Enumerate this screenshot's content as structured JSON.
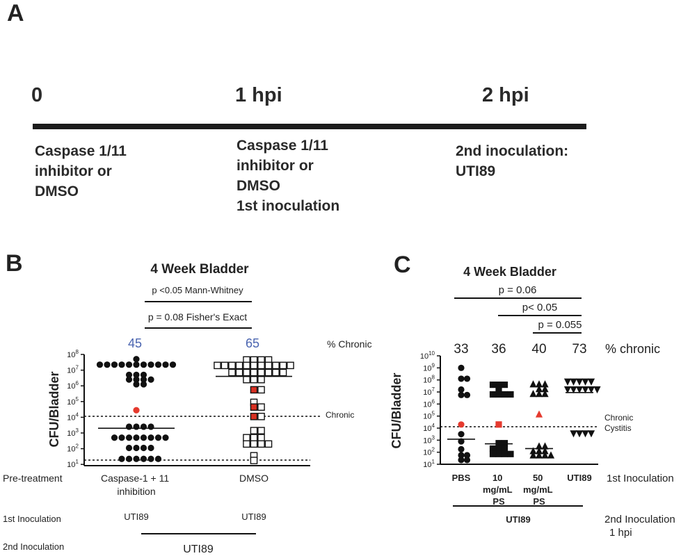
{
  "panelA": {
    "label": "A",
    "timepoints": [
      "0",
      "1 hpi",
      "2 hpi"
    ],
    "step_lines": [
      [
        "Caspase 1/11",
        "inhibitor or",
        "DMSO"
      ],
      [
        "Caspase 1/11",
        "inhibitor or",
        "DMSO",
        "1st inoculation"
      ],
      [
        "2nd inoculation:",
        "UTI89"
      ]
    ]
  },
  "panelB": {
    "label": "B",
    "title": "4 Week Bladder",
    "p_mw": "p <0.05 Mann-Whitney",
    "p_fisher": "p = 0.08 Fisher's Exact",
    "pct_values": [
      "45",
      "65"
    ],
    "pct_label": "% Chronic",
    "ylabel": "CFU/Bladder",
    "chronic_label": "Chronic",
    "row_labels": [
      "Pre-treatment",
      "1st Inoculation",
      "2nd Inoculation"
    ],
    "group_names": [
      [
        "Caspase-1 + 11",
        "inhibition"
      ],
      [
        "DMSO"
      ]
    ],
    "first_inoc": [
      "UTI89",
      "UTI89"
    ],
    "second_inoc": "UTI89",
    "tick_exponents": [
      "8",
      "7",
      "6",
      "5",
      "4",
      "3",
      "2",
      "1"
    ]
  },
  "panelC": {
    "label": "C",
    "title": "4 Week Bladder",
    "p_values": [
      "p = 0.06",
      "p< 0.05",
      "p = 0.055"
    ],
    "pct_values": [
      "33",
      "36",
      "40",
      "73"
    ],
    "pct_label": "% chronic",
    "ylabel": "CFU/Bladder",
    "chronic_label": [
      "Chronic",
      "Cystitis"
    ],
    "group_labels": [
      [
        "PBS"
      ],
      [
        "10",
        "mg/mL",
        "PS"
      ],
      [
        "50",
        "mg/mL",
        "PS"
      ],
      [
        "UTI89"
      ]
    ],
    "first_inoc_label": "1st Inoculation",
    "second_inoc_label": [
      "2nd Inoculation",
      "1 hpi"
    ],
    "second_inoc_value": "UTI89",
    "tick_exponents": [
      "10",
      "9",
      "8",
      "7",
      "6",
      "5",
      "4",
      "3",
      "2",
      "1"
    ]
  },
  "chart_data": [
    {
      "type": "scatter",
      "title": "4 Week Bladder",
      "ylabel": "CFU/Bladder",
      "yscale": "log",
      "ylim": [
        10,
        100000000
      ],
      "categories": [
        "Caspase-1 + 11 inhibition",
        "DMSO"
      ],
      "threshold_label": "Chronic",
      "threshold": 10000,
      "detection_limit": 20,
      "percent_chronic": [
        45,
        65
      ],
      "medians": [
        2000,
        4000000
      ],
      "series": [
        {
          "name": "Caspase-1 + 11 inhibition",
          "marker": "filled-circle",
          "color": "#111111",
          "highlight_color": "#e53a2e",
          "log10_values": [
            7.7,
            7.35,
            7.3,
            7.3,
            7.3,
            7.3,
            7.3,
            7.25,
            7.25,
            7.2,
            7.2,
            7.2,
            6.7,
            6.55,
            6.45,
            6.4,
            6.35,
            6.25,
            6.0,
            6.1,
            6.15,
            4.45,
            3.4,
            3.4,
            3.3,
            3.3,
            2.7,
            2.7,
            2.65,
            2.65,
            2.6,
            2.6,
            2.5,
            2.5,
            2.05,
            2.05,
            1.95,
            1.95,
            1.35,
            1.35,
            1.35,
            1.35,
            1.35,
            1.35
          ],
          "highlight_log10": [
            4.45
          ]
        },
        {
          "name": "DMSO",
          "marker": "open-square",
          "color": "#111111",
          "highlight_color": "#d63022",
          "log10_values": [
            7.65,
            7.45,
            7.4,
            7.4,
            7.3,
            7.3,
            7.3,
            7.3,
            7.3,
            7.3,
            7.3,
            7.3,
            7.3,
            7.3,
            7.3,
            6.85,
            6.85,
            6.85,
            6.85,
            6.85,
            6.85,
            6.6,
            6.6,
            6.4,
            6.4,
            6.3,
            5.75,
            5.75,
            4.95,
            4.65,
            4.55,
            4.05,
            4.05,
            3.15,
            3.15,
            2.7,
            2.7,
            2.5,
            2.3,
            2.3,
            2.3,
            2.3,
            1.55,
            1.25
          ],
          "highlight_log10": [
            5.75,
            4.65,
            4.05
          ]
        }
      ]
    },
    {
      "type": "scatter",
      "title": "4 Week Bladder",
      "ylabel": "CFU/Bladder",
      "yscale": "log",
      "ylim": [
        10,
        10000000000
      ],
      "categories": [
        "PBS",
        "10 mg/mL PS",
        "50 mg/mL PS",
        "UTI89"
      ],
      "threshold_label": "Chronic Cystitis",
      "threshold": 10000,
      "percent_chronic": [
        33,
        36,
        40,
        73
      ],
      "medians": [
        1200,
        500,
        200,
        9000000
      ],
      "series": [
        {
          "name": "PBS",
          "marker": "filled-circle",
          "color": "#111111",
          "highlight_color": "#e53a2e",
          "log10_values": [
            9.0,
            8.1,
            7.9,
            7.2,
            6.75,
            6.6,
            4.3,
            3.5,
            2.9,
            2.25,
            1.75,
            1.5,
            1.35,
            1.35
          ],
          "highlight_log10": [
            4.3
          ]
        },
        {
          "name": "10 mg/mL PS",
          "marker": "filled-square",
          "color": "#111111",
          "highlight_color": "#e53a2e",
          "log10_values": [
            7.6,
            7.55,
            7.55,
            7.2,
            6.8,
            6.8,
            6.7,
            6.55,
            4.3,
            2.75,
            2.55,
            2.3,
            2.3,
            2.1,
            1.85,
            1.85,
            1.85,
            1.85
          ],
          "highlight_log10": [
            4.3
          ]
        },
        {
          "name": "50 mg/mL PS",
          "marker": "filled-triangle",
          "color": "#111111",
          "highlight_color": "#e53a2e",
          "log10_values": [
            7.65,
            7.65,
            7.55,
            7.25,
            7.05,
            6.85,
            6.75,
            6.6,
            5.15,
            2.5,
            2.3,
            2.1,
            2.0,
            1.85,
            1.75,
            1.75,
            1.55,
            1.55
          ],
          "highlight_log10": [
            5.15
          ]
        },
        {
          "name": "UTI89",
          "marker": "filled-inverted-triangle",
          "color": "#111111",
          "highlight_color": "#e53a2e",
          "log10_values": [
            7.85,
            7.85,
            7.75,
            7.75,
            7.55,
            7.2,
            7.2,
            7.05,
            7.05,
            6.9,
            6.9,
            3.55,
            3.55,
            3.45,
            3.45
          ],
          "highlight_log10": []
        }
      ]
    }
  ]
}
